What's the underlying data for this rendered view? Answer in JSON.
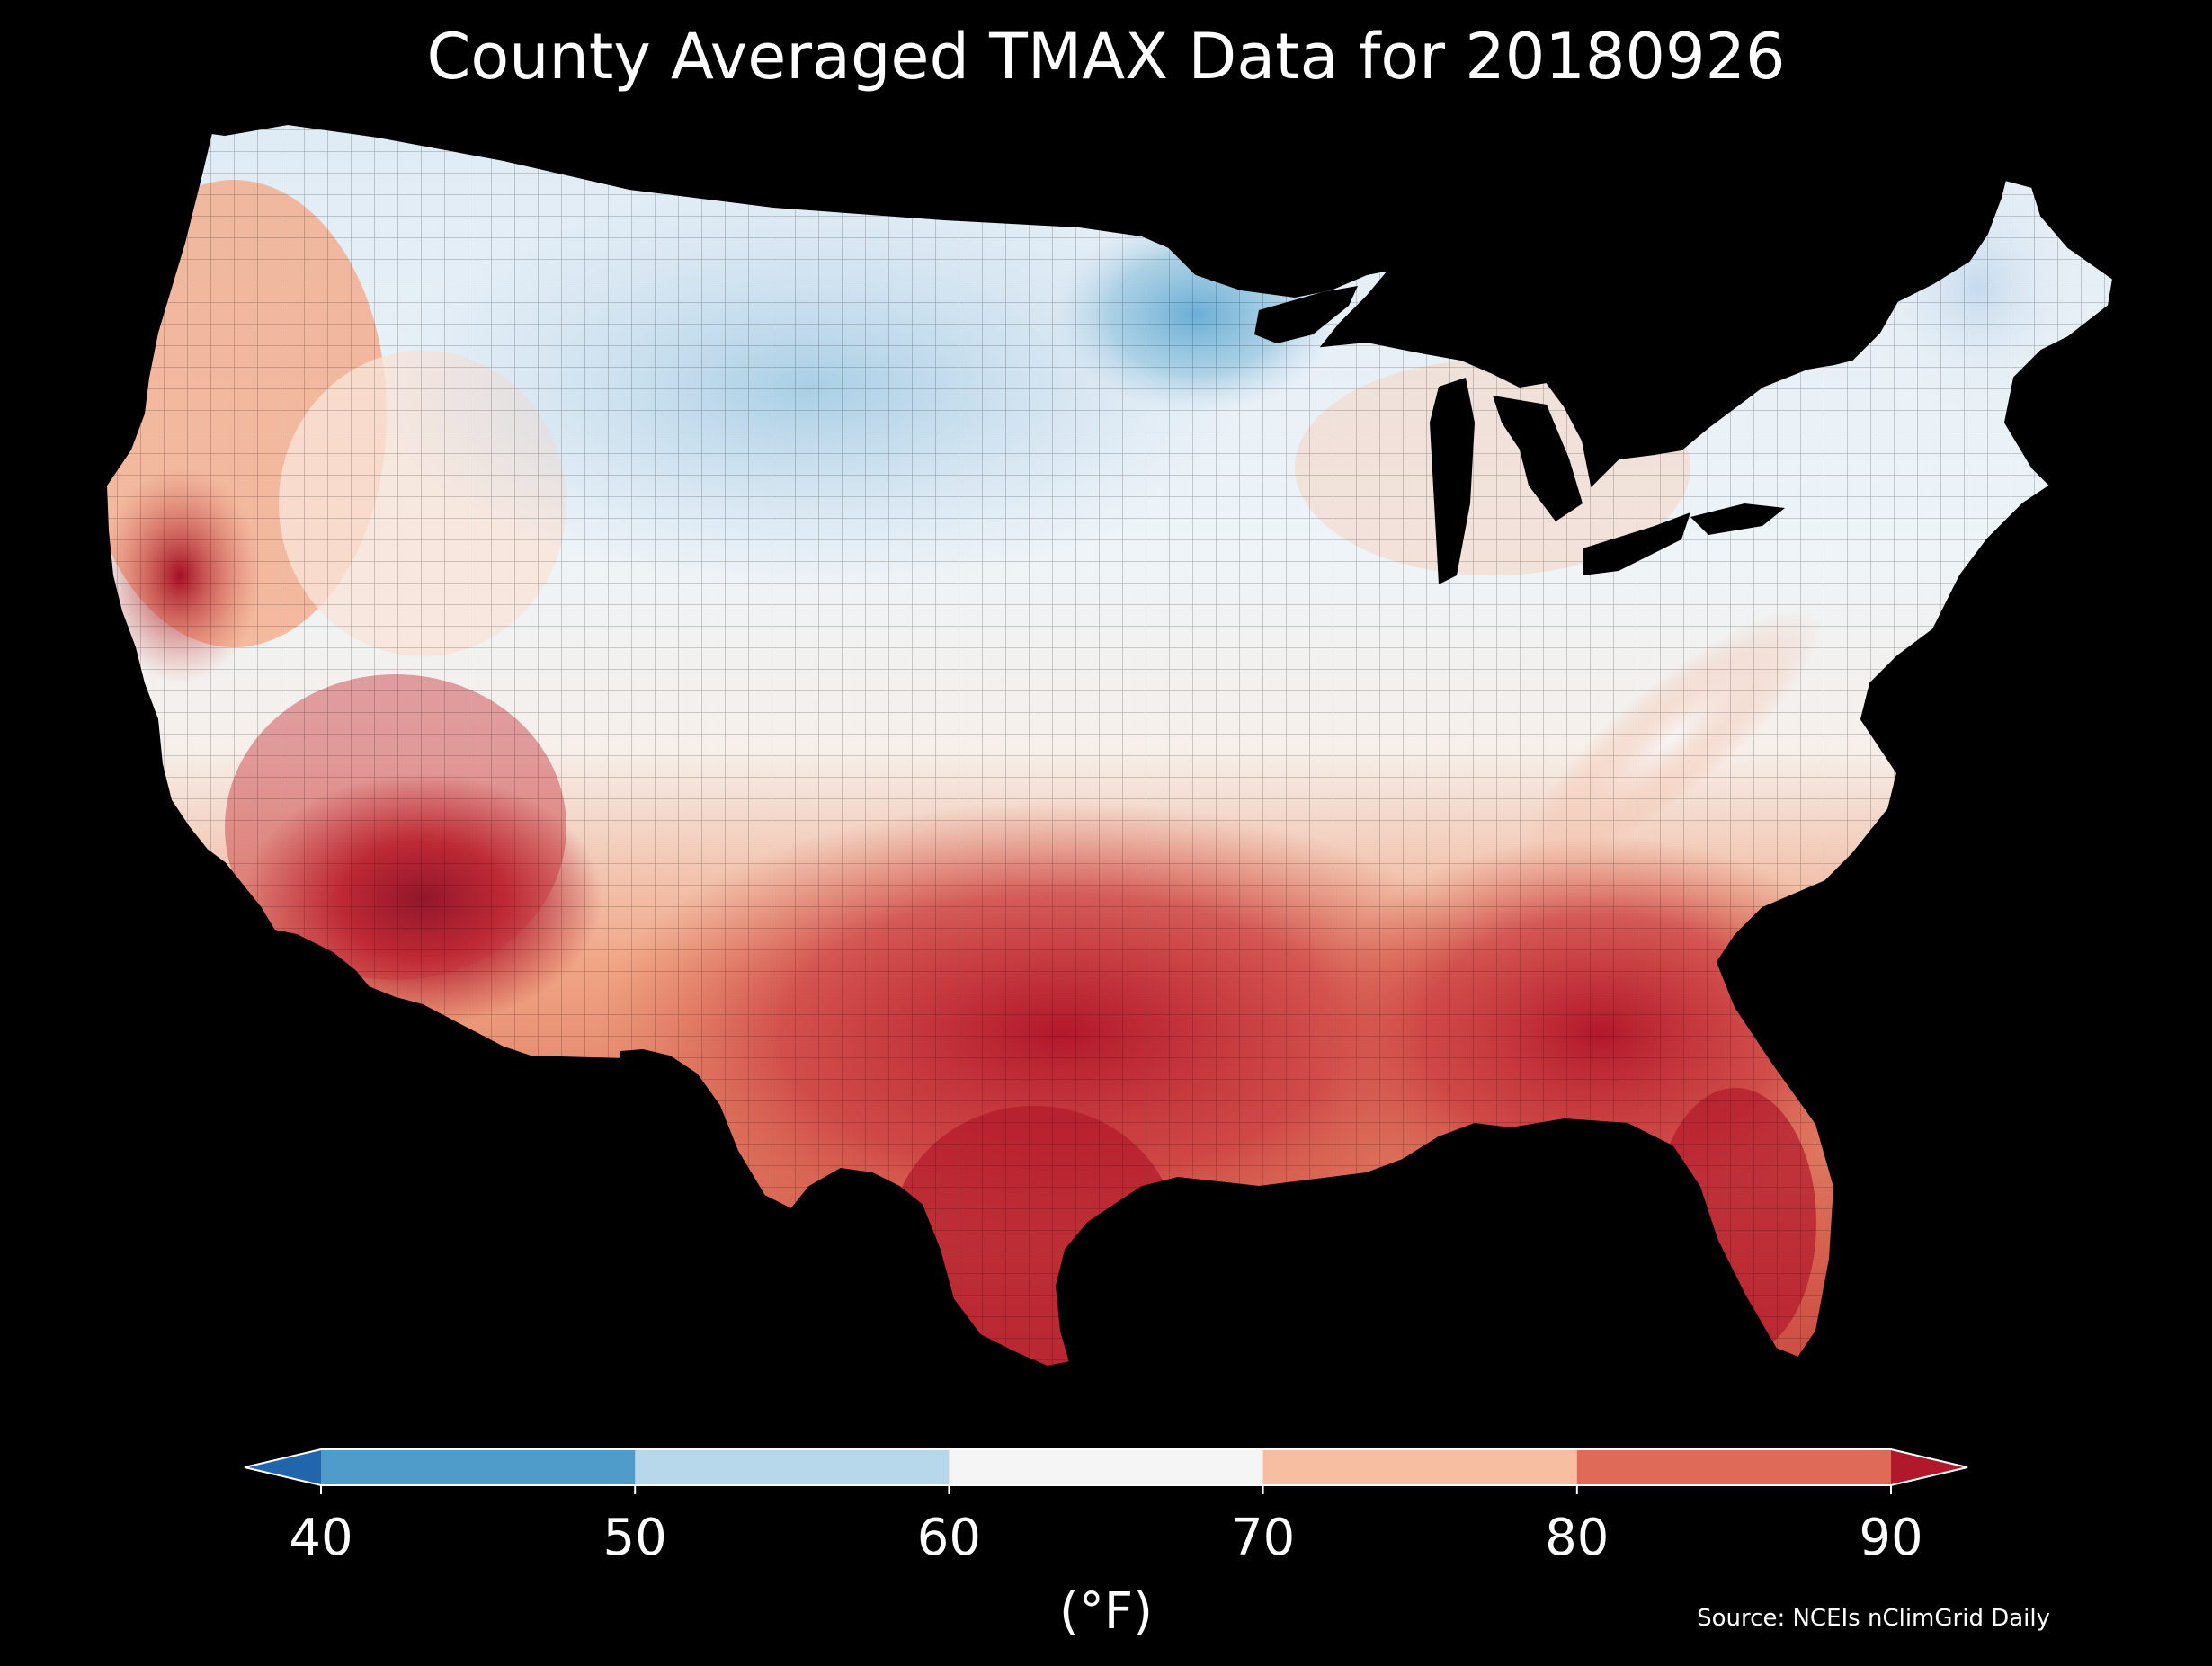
{
  "title": "County Averaged TMAX Data for 20180926",
  "source": "Source: NCEIs nClimGrid Daily",
  "colorbar": {
    "unit": "(°F)",
    "ticks": [
      "40",
      "50",
      "60",
      "70",
      "80",
      "90"
    ],
    "bins": [
      {
        "range": "<40",
        "color": "#2166ac"
      },
      {
        "range": "40-50",
        "color": "#4f9bc9"
      },
      {
        "range": "50-60",
        "color": "#b7d8ea"
      },
      {
        "range": "60-70",
        "color": "#f5f5f5"
      },
      {
        "range": "70-80",
        "color": "#f7bea1"
      },
      {
        "range": "80-90",
        "color": "#de6a57"
      },
      {
        "range": ">90",
        "color": "#b2182b"
      }
    ]
  },
  "map": {
    "projection": "conus-lambert",
    "background": "#000000",
    "palette": {
      "cold": "#6baed6",
      "cool": "#c6dbef",
      "neutral": "#f7f7f7",
      "warm": "#f4a582",
      "hot": "#d6604d",
      "very_hot": "#b2182b",
      "extreme": "#67001f"
    }
  }
}
